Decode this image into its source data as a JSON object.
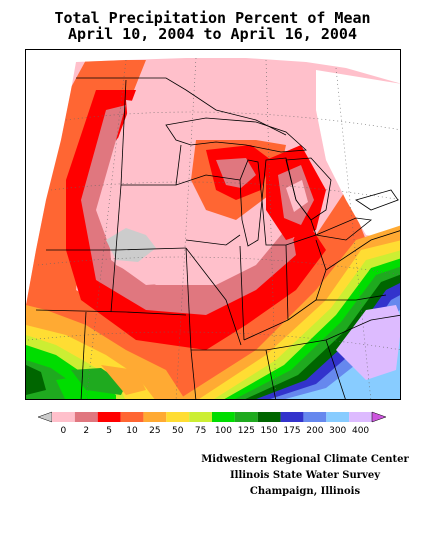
{
  "title": {
    "line1": "Total Precipitation Percent of Mean",
    "line2": "April 10, 2004 to April 16, 2004"
  },
  "legend": {
    "labels": [
      "0",
      "2",
      "5",
      "10",
      "25",
      "50",
      "75",
      "100",
      "125",
      "150",
      "175",
      "200",
      "300",
      "400"
    ],
    "colors": [
      "#ffc0cb",
      "#e0777f",
      "#ff0000",
      "#ff6633",
      "#ffaa33",
      "#ffdd33",
      "#ccee33",
      "#00dd00",
      "#1faa1f",
      "#006600",
      "#3333cc",
      "#6688ee",
      "#88ccff",
      "#ddbbff"
    ],
    "below_color": "#cccccc",
    "above_color": "#cc55dd"
  },
  "credits": {
    "line1": "Midwestern Regional Climate Center",
    "line2": "Illinois State Water Survey",
    "line3": "Champaign, Illinois"
  },
  "map": {
    "background_color": "#ffffff",
    "boundary_color": "#000000",
    "graticule_color": "#666666"
  }
}
